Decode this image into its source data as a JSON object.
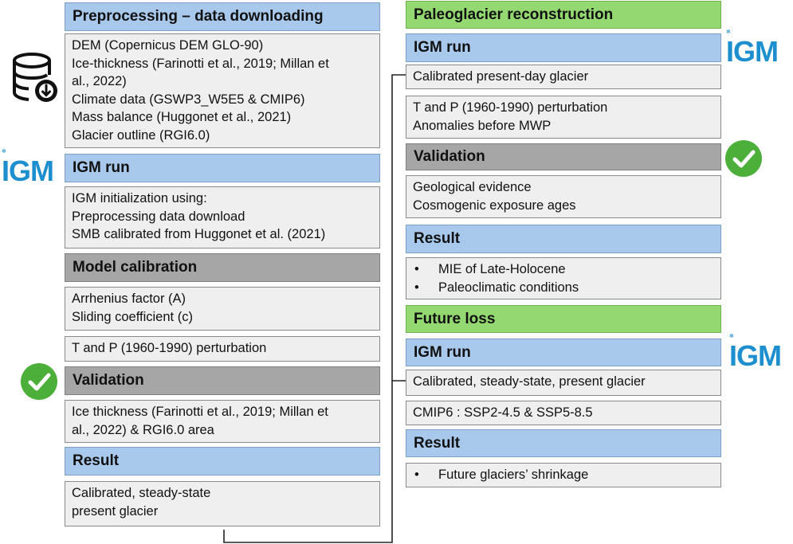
{
  "left": {
    "preprocessing_header": "Preprocessing – data downloading",
    "preprocessing_items": [
      "DEM (Copernicus DEM GLO-90)",
      "Ice-thickness (Farinotti et al., 2019; Millan et",
      "al., 2022)",
      "Climate data (GSWP3_W5E5 & CMIP6)",
      "Mass balance (Huggonet et al., 2021)",
      "Glacier outline (RGI6.0)"
    ],
    "igm_run_header": "IGM run",
    "igm_init_items": [
      "IGM initialization  using:",
      "Preprocessing data download",
      "SMB calibrated from Huggonet et al. (2021)"
    ],
    "calibration_header": "Model calibration",
    "calibration_items": [
      "Arrhenius factor (A)",
      "Sliding coefficient (c)"
    ],
    "perturbation": "T and P (1960-1990) perturbation",
    "validation_header": "Validation",
    "validation_items": [
      "Ice thickness (Farinotti et al., 2019; Millan et",
      "al., 2022) & RGI6.0 area"
    ],
    "result_header": "Result",
    "result_items": [
      "Calibrated, steady-state",
      "present glacier"
    ]
  },
  "right": {
    "paleo_header": "Paleoglacier reconstruction",
    "igm_run_header": "IGM run",
    "calibrated_present": "Calibrated present-day glacier",
    "perturbation_items": [
      "T and P (1960-1990) perturbation",
      "Anomalies before MWP"
    ],
    "validation_header": "Validation",
    "validation_items": [
      "Geological evidence",
      "Cosmogenic exposure ages"
    ],
    "result_header": "Result",
    "result_bullets": [
      "MIE of Late-Holocene",
      "Paleoclimatic conditions"
    ],
    "future_header": "Future loss",
    "igm_run_header_2": "IGM run",
    "calibrated_steady": "Calibrated, steady-state, present glacier",
    "cmip6": "CMIP6 : SSP2-4.5 & SSP5-8.5",
    "result_header_2": "Result",
    "future_bullets": [
      "Future glaciers’ shrinkage"
    ]
  },
  "bullet_char": "•",
  "logo_text": "IGM",
  "colors": {
    "blue_header": "#a9c9ec",
    "grey_header": "#a6a6a6",
    "green_header": "#93d870",
    "content_bg": "#efefef",
    "check_green": "#4caf3a",
    "logo_blue": "#1d8fcf"
  },
  "icons": [
    "database-download-icon",
    "igm-logo",
    "checkmark-icon"
  ]
}
